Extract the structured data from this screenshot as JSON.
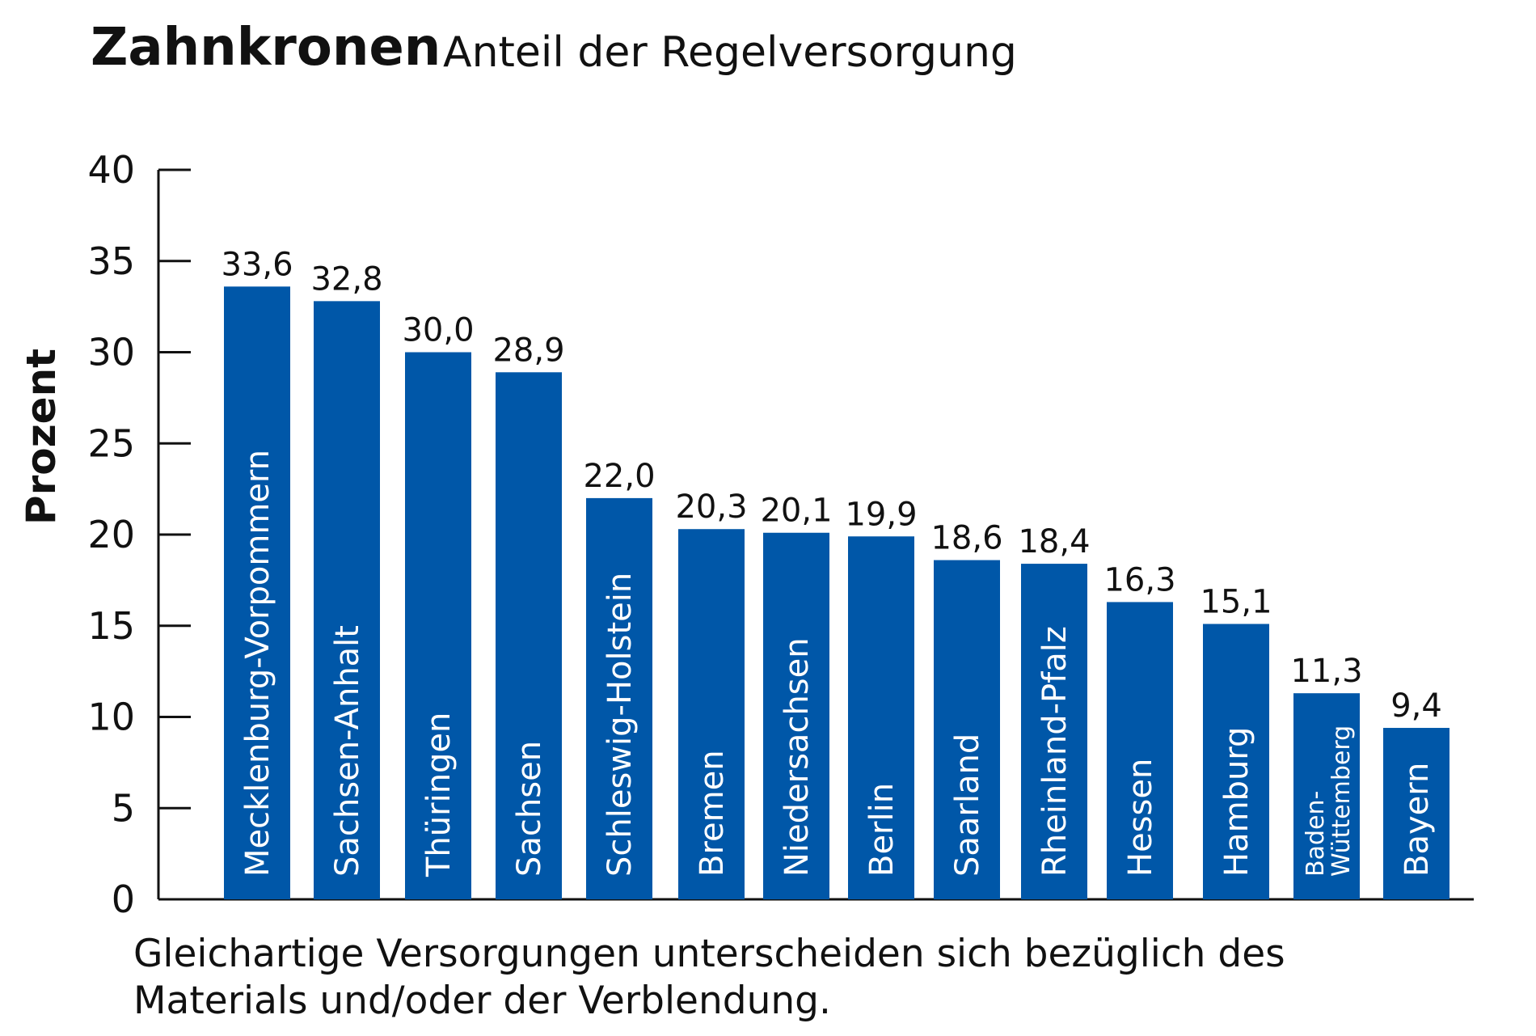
{
  "chart_data": {
    "type": "bar",
    "title": "Zahnkronen",
    "subtitle": "Anteil der Regelversorgung",
    "ylabel": "Prozent",
    "xlabel": "",
    "ylim": [
      0,
      40
    ],
    "yticks": [
      0,
      5,
      10,
      15,
      20,
      25,
      30,
      35,
      40
    ],
    "grid": false,
    "bar_color": "#0057a8",
    "categories": [
      "Mecklenburg-Vorpommern",
      "Sachsen-Anhalt",
      "Thüringen",
      "Sachsen",
      "Schleswig-Holstein",
      "Bremen",
      "Niedersachsen",
      "Berlin",
      "Saarland",
      "Rheinland-Pfalz",
      "Hessen",
      "Hamburg",
      "Baden-Württemberg",
      "Bayern"
    ],
    "category_display": [
      [
        "Mecklenburg-Vorpommern"
      ],
      [
        "Sachsen-Anhalt"
      ],
      [
        "Thüringen"
      ],
      [
        "Sachsen"
      ],
      [
        "Schleswig-Holstein"
      ],
      [
        "Bremen"
      ],
      [
        "Niedersachsen"
      ],
      [
        "Berlin"
      ],
      [
        "Saarland"
      ],
      [
        "Rheinland-Pfalz"
      ],
      [
        "Hessen"
      ],
      [
        "Hamburg"
      ],
      [
        "Baden-",
        "Wüttemberg"
      ],
      [
        "Bayern"
      ]
    ],
    "values": [
      33.6,
      32.8,
      30.0,
      28.9,
      22.0,
      20.3,
      20.1,
      19.9,
      18.6,
      18.4,
      16.3,
      15.1,
      11.3,
      9.4
    ],
    "value_labels": [
      "33,6",
      "32,8",
      "30,0",
      "28,9",
      "22,0",
      "20,3",
      "20,1",
      "19,9",
      "18,6",
      "18,4",
      "16,3",
      "15,1",
      "11,3",
      "9,4"
    ],
    "footnote": [
      "Gleichartige Versorgungen unterscheiden sich bezüglich des",
      "Materials und/oder der Verblendung."
    ]
  }
}
